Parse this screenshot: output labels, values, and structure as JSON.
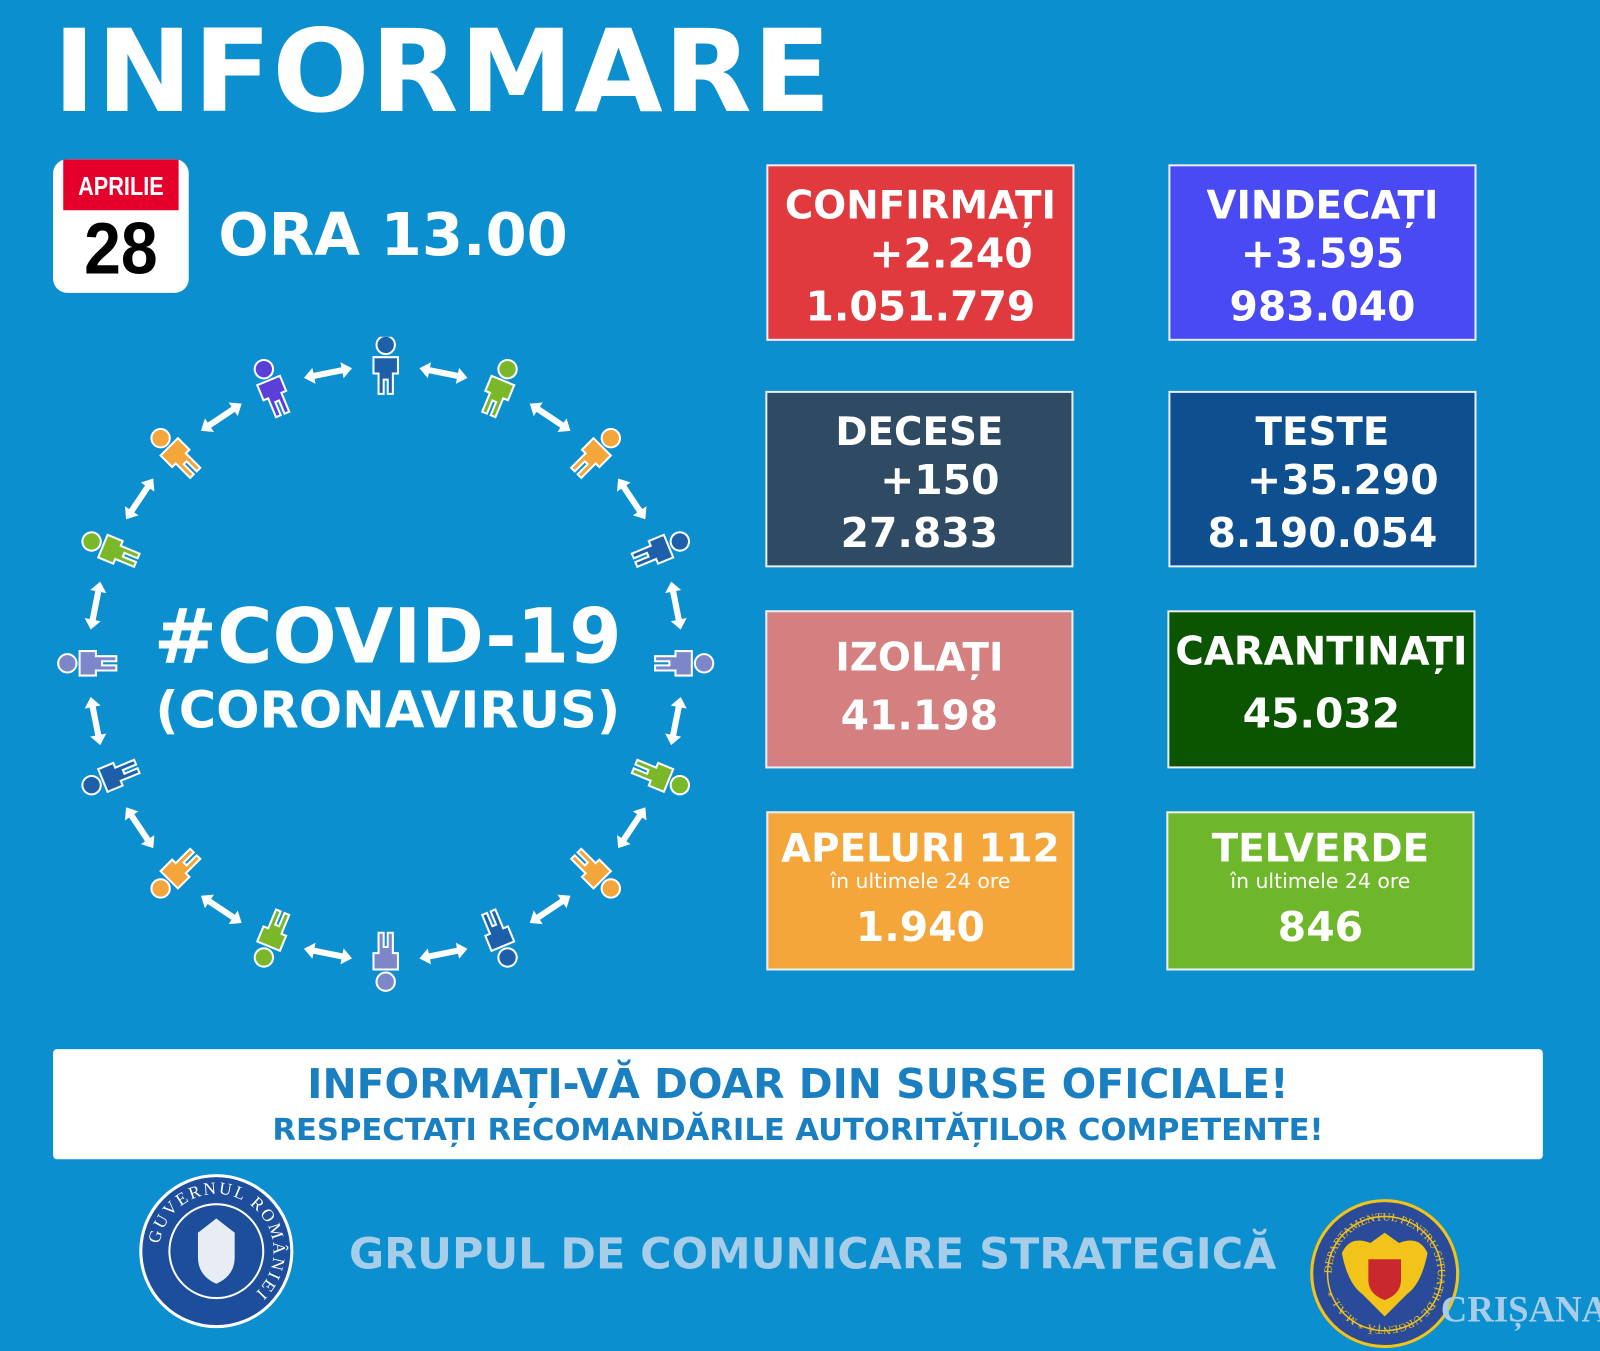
{
  "title": "INFORMARE",
  "date": {
    "month": "APRILIE",
    "day": "28"
  },
  "time": "ORA 13.00",
  "covid": {
    "hashtag": "#COVID-19",
    "subtitle": "(CORONAVIRUS)"
  },
  "cards": {
    "confirmati": {
      "label": "CONFIRMAȚI",
      "delta": "+2.240",
      "total": "1.051.779",
      "color": "#e03a3e"
    },
    "vindecati": {
      "label": "VINDECAȚI",
      "delta": "+3.595",
      "total": "983.040",
      "color": "#4a4af4"
    },
    "decese": {
      "label": "DECESE",
      "delta": "+150",
      "total": "27.833",
      "color": "#2f4b63"
    },
    "teste": {
      "label": "TESTE",
      "delta": "+35.290",
      "total": "8.190.054",
      "color": "#0e4f8f"
    },
    "izolati": {
      "label": "IZOLAȚI",
      "total": "41.198",
      "color": "#d47f80"
    },
    "carantinati": {
      "label": "CARANTINAȚI",
      "total": "45.032",
      "color": "#0b5500"
    },
    "apeluri": {
      "label": "APELURI 112",
      "sub": "în ultimele 24 ore",
      "total": "1.940",
      "color": "#f4a63a"
    },
    "telverde": {
      "label": "TELVERDE",
      "sub": "în ultimele 24 ore",
      "total": "846",
      "color": "#6fb72a"
    }
  },
  "banner": {
    "line1": "INFORMAȚI-VĂ DOAR DIN SURSE OFICIALE!",
    "line2": "RESPECTAȚI RECOMANDĂRILE AUTORITĂȚILOR COMPETENTE!"
  },
  "footer": {
    "text": "GRUPUL DE COMUNICARE STRATEGICĂ",
    "logo_left": "GUVERNUL ROMÂNIEI",
    "logo_right": "DEPARTAMENTUL PENTRU SITUAȚII DE URGENȚĂ * M.A.I. *",
    "watermark": "CRIȘANA"
  },
  "people_colors": [
    "#1d5fa8",
    "#7ab829",
    "#f4a63a",
    "#1d5fa8",
    "#7d86c8",
    "#7ab829",
    "#f4a63a",
    "#1d5fa8",
    "#7d86c8",
    "#7ab829",
    "#f4a63a",
    "#1d5fa8",
    "#7d86c8",
    "#7ab829",
    "#f4a63a",
    "#5b3fd6"
  ]
}
